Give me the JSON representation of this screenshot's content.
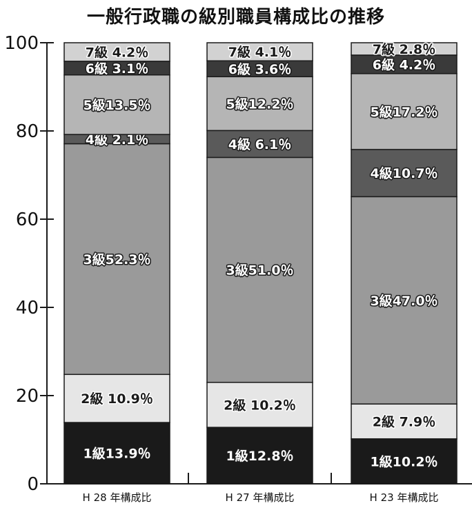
{
  "chart_data": {
    "type": "bar",
    "stacked": true,
    "title": "一般行政職の級別職員構成比の推移",
    "xlabel": "",
    "ylabel": "",
    "ylim": [
      0,
      100
    ],
    "yticks": [
      "0",
      "20",
      "40",
      "60",
      "80",
      "100"
    ],
    "categories": [
      "H 28 年構成比",
      "H 27 年構成比",
      "H 23 年構成比"
    ],
    "series": [
      {
        "name": "1級",
        "color": "#1a1a1a",
        "text_color": "#ffffff",
        "values": [
          13.9,
          12.8,
          10.2
        ],
        "labels": [
          "1級13.9％",
          "1級12.8％",
          "1級10.2％"
        ]
      },
      {
        "name": "2級",
        "color": "#e6e6e6",
        "text_color": "#1a1a1a",
        "values": [
          10.9,
          10.2,
          7.9
        ],
        "labels": [
          "2級 10.9％",
          "2級 10.2％",
          "2級 7.9％"
        ]
      },
      {
        "name": "3級",
        "color": "#9a9a9a",
        "text_color": "#ffffff",
        "values": [
          52.3,
          51.0,
          47.0
        ],
        "labels": [
          "3級52.3％",
          "3級51.0％",
          "3級47.0％"
        ]
      },
      {
        "name": "4級",
        "color": "#5a5a5a",
        "text_color": "#ffffff",
        "values": [
          2.1,
          6.1,
          10.7
        ],
        "labels": [
          "4級 2.1％",
          "4級 6.1％",
          "4級10.7％"
        ]
      },
      {
        "name": "5級",
        "color": "#b5b5b5",
        "text_color": "#ffffff",
        "values": [
          13.5,
          12.2,
          17.2
        ],
        "labels": [
          "5級13.5％",
          "5級12.2％",
          "5級17.2％"
        ]
      },
      {
        "name": "6級",
        "color": "#3a3a3a",
        "text_color": "#ffffff",
        "values": [
          3.1,
          3.6,
          4.2
        ],
        "labels": [
          "6級 3.1％",
          "6級 3.6％",
          "6級 4.2％"
        ]
      },
      {
        "name": "7級",
        "color": "#d2d2d2",
        "text_color": "#1a1a1a",
        "values": [
          4.2,
          4.1,
          2.8
        ],
        "labels": [
          "7級 4.2％",
          "7級 4.1％",
          "7級 2.8％"
        ]
      }
    ]
  }
}
